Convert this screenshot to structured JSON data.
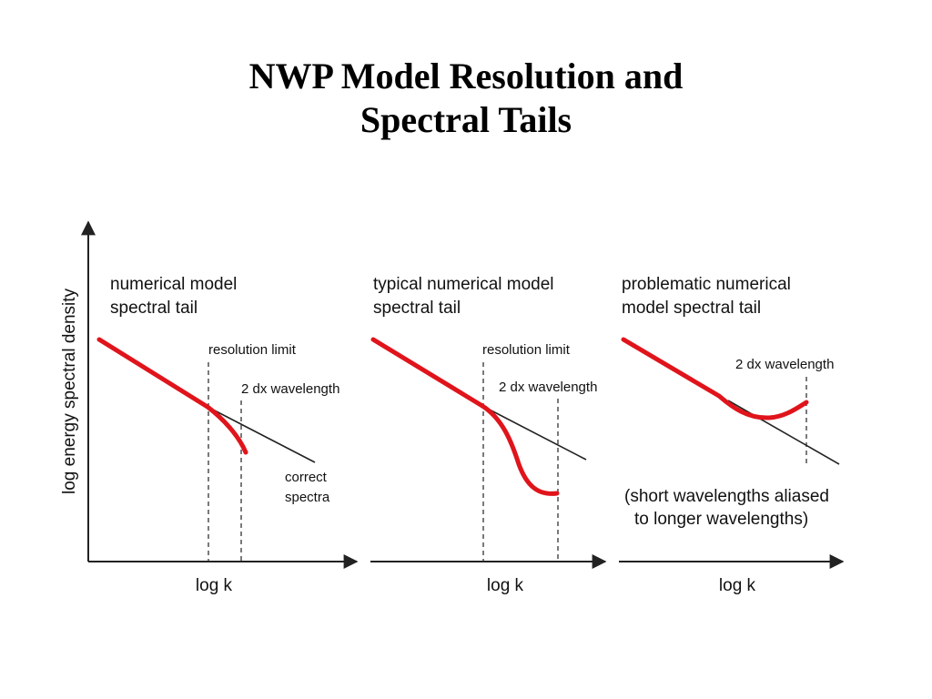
{
  "title": {
    "line1": "NWP Model Resolution and",
    "line2": "Spectral Tails"
  },
  "y_axis_label": "log energy spectral density",
  "panels": [
    {
      "heading_line1": "numerical model",
      "heading_line2": "spectral tail",
      "resolution_limit": "resolution limit",
      "dx_wavelength": "2 dx wavelength",
      "correct_line1": "correct",
      "correct_line2": "spectra",
      "x_axis_label": "log k"
    },
    {
      "heading_line1": "typical numerical model",
      "heading_line2": "spectral tail",
      "resolution_limit": "resolution limit",
      "dx_wavelength": "2 dx wavelength",
      "x_axis_label": "log k"
    },
    {
      "heading_line1": "problematic numerical",
      "heading_line2": "model spectral tail",
      "dx_wavelength": "2 dx wavelength",
      "note_line1": "(short wavelengths aliased",
      "note_line2": "to longer wavelengths)",
      "x_axis_label": "log k"
    }
  ],
  "colors": {
    "model_curve": "#e0141b",
    "correct_line": "#222222",
    "axes": "#222222"
  }
}
